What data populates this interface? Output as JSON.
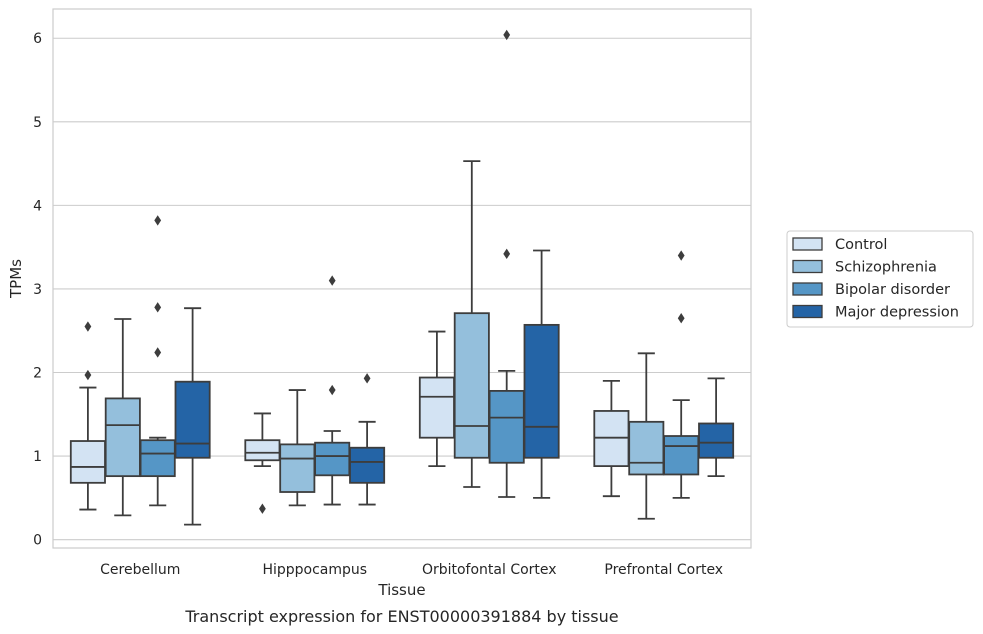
{
  "caption": "Transcript expression for ENST00000391884 by tissue",
  "chart_data": {
    "type": "box",
    "title": "",
    "xlabel": "Tissue",
    "ylabel": "TPMs",
    "ylim": [
      -0.1,
      6.35
    ],
    "yticks": [
      0,
      1,
      2,
      3,
      4,
      5,
      6
    ],
    "grid": "horizontal",
    "legend_position": "right",
    "categories": [
      "Cerebellum",
      "Hipppocampus",
      "Orbitofontal Cortex",
      "Prefrontal Cortex"
    ],
    "series": [
      {
        "name": "Control",
        "color": "#d3e3f3",
        "boxes": [
          {
            "whislo": 0.36,
            "q1": 0.68,
            "med": 0.87,
            "q3": 1.18,
            "whishi": 1.82,
            "fliers": [
              1.97,
              2.55
            ]
          },
          {
            "whislo": 0.88,
            "q1": 0.95,
            "med": 1.04,
            "q3": 1.19,
            "whishi": 1.51,
            "fliers": [
              0.37
            ]
          },
          {
            "whislo": 0.88,
            "q1": 1.22,
            "med": 1.71,
            "q3": 1.94,
            "whishi": 2.49,
            "fliers": []
          },
          {
            "whislo": 0.52,
            "q1": 0.88,
            "med": 1.22,
            "q3": 1.54,
            "whishi": 1.9,
            "fliers": []
          }
        ]
      },
      {
        "name": "Schizophrenia",
        "color": "#94bfdc",
        "boxes": [
          {
            "whislo": 0.29,
            "q1": 0.76,
            "med": 1.37,
            "q3": 1.69,
            "whishi": 2.64,
            "fliers": []
          },
          {
            "whislo": 0.41,
            "q1": 0.57,
            "med": 0.97,
            "q3": 1.14,
            "whishi": 1.79,
            "fliers": []
          },
          {
            "whislo": 0.63,
            "q1": 0.98,
            "med": 1.36,
            "q3": 2.71,
            "whishi": 4.53,
            "fliers": []
          },
          {
            "whislo": 0.25,
            "q1": 0.78,
            "med": 0.92,
            "q3": 1.41,
            "whishi": 2.23,
            "fliers": []
          }
        ]
      },
      {
        "name": "Bipolar disorder",
        "color": "#5596c6",
        "boxes": [
          {
            "whislo": 0.41,
            "q1": 0.76,
            "med": 1.03,
            "q3": 1.19,
            "whishi": 1.22,
            "fliers": [
              2.24,
              2.78,
              3.82
            ]
          },
          {
            "whislo": 0.42,
            "q1": 0.77,
            "med": 1.0,
            "q3": 1.16,
            "whishi": 1.3,
            "fliers": [
              1.79,
              3.1
            ]
          },
          {
            "whislo": 0.51,
            "q1": 0.92,
            "med": 1.46,
            "q3": 1.78,
            "whishi": 2.02,
            "fliers": [
              3.42,
              6.04
            ]
          },
          {
            "whislo": 0.5,
            "q1": 0.78,
            "med": 1.12,
            "q3": 1.24,
            "whishi": 1.67,
            "fliers": [
              2.65,
              3.4
            ]
          }
        ]
      },
      {
        "name": "Major depression",
        "color": "#2464a6",
        "boxes": [
          {
            "whislo": 0.18,
            "q1": 0.98,
            "med": 1.15,
            "q3": 1.89,
            "whishi": 2.77,
            "fliers": []
          },
          {
            "whislo": 0.42,
            "q1": 0.68,
            "med": 0.93,
            "q3": 1.1,
            "whishi": 1.41,
            "fliers": [
              1.93
            ]
          },
          {
            "whislo": 0.5,
            "q1": 0.98,
            "med": 1.35,
            "q3": 2.57,
            "whishi": 3.46,
            "fliers": []
          },
          {
            "whislo": 0.76,
            "q1": 0.98,
            "med": 1.16,
            "q3": 1.39,
            "whishi": 1.93,
            "fliers": []
          }
        ]
      }
    ]
  }
}
